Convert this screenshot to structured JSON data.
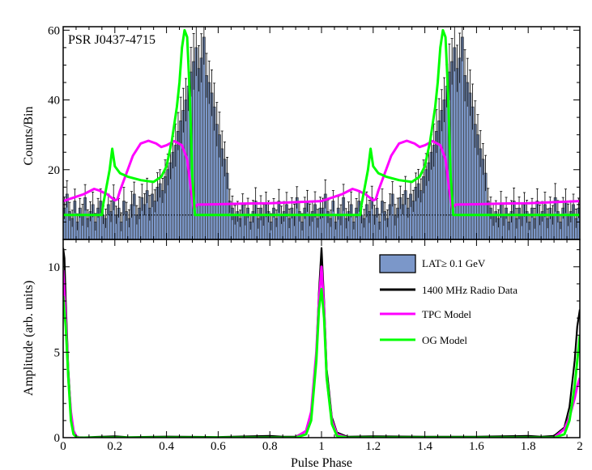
{
  "chart_data": [
    {
      "type": "bar",
      "panel": "top",
      "annotation": "PSR J0437-4715",
      "ylabel": "Counts/Bin",
      "xlim": [
        0,
        2
      ],
      "ylim": [
        0,
        61
      ],
      "x_ticks": [
        "0",
        "0.2",
        "0.4",
        "0.6",
        "0.8",
        "1",
        "1.2",
        "1.4",
        "1.6",
        "1.8",
        "2"
      ],
      "y_ticks": [
        "20",
        "40",
        "60"
      ],
      "background_level": 7.0,
      "histogram": {
        "name": "LAT≥ 0.1 GeV",
        "color": "#7b97c9",
        "bins_per_cycle": 100,
        "bin_width": 0.01,
        "values": [
          9,
          13,
          8,
          6,
          11,
          5,
          9,
          7,
          12,
          6,
          8,
          10,
          5,
          9,
          11,
          7,
          6,
          10,
          8,
          12,
          7,
          9,
          5,
          11,
          8,
          6,
          10,
          13,
          7,
          9,
          12,
          10,
          14,
          9,
          13,
          11,
          15,
          16,
          14,
          18,
          20,
          22,
          25,
          27,
          31,
          34,
          37,
          40,
          44,
          48,
          51,
          55,
          49,
          52,
          58,
          47,
          45,
          42,
          38,
          33,
          30,
          26,
          23,
          19,
          11,
          9,
          7,
          8,
          6,
          10,
          7,
          9,
          5,
          8,
          11,
          6,
          9,
          7,
          10,
          8,
          5,
          9,
          6,
          11,
          7,
          8,
          10,
          6,
          9,
          7,
          12,
          8,
          5,
          9,
          11,
          7,
          8,
          10,
          6,
          9
        ]
      },
      "series": [
        {
          "name": "TPC Model",
          "color": "#ff00ff",
          "x": [
            0,
            0.04,
            0.08,
            0.12,
            0.14,
            0.17,
            0.2,
            0.21,
            0.22,
            0.24,
            0.27,
            0.3,
            0.33,
            0.36,
            0.38,
            0.4,
            0.43,
            0.46,
            0.48,
            0.495,
            0.505,
            0.52,
            0.6,
            0.7,
            0.8,
            0.9,
            1.0,
            1.04,
            1.08,
            1.12,
            1.14,
            1.17,
            1.2,
            1.21,
            1.22,
            1.24,
            1.27,
            1.3,
            1.33,
            1.36,
            1.38,
            1.4,
            1.43,
            1.46,
            1.48,
            1.495,
            1.505,
            1.52,
            1.6,
            1.7,
            1.8,
            1.9,
            2.0
          ],
          "values": [
            11,
            12,
            13,
            14.5,
            14,
            13,
            11.2,
            11.5,
            14,
            18,
            24,
            27.5,
            28.3,
            27.5,
            26.5,
            27,
            28.2,
            27,
            23,
            14,
            9,
            10,
            10.1,
            10.3,
            10.4,
            10.7,
            11,
            12,
            13,
            14.5,
            14,
            13,
            11.2,
            11.5,
            14,
            18,
            24,
            27.5,
            28.3,
            27.5,
            26.5,
            27,
            28.2,
            27,
            23,
            14,
            9,
            10,
            10.1,
            10.3,
            10.4,
            10.7,
            11
          ]
        },
        {
          "name": "OG Model",
          "color": "#00ff00",
          "x": [
            0,
            0.15,
            0.155,
            0.18,
            0.19,
            0.2,
            0.22,
            0.25,
            0.3,
            0.35,
            0.38,
            0.4,
            0.42,
            0.44,
            0.45,
            0.46,
            0.47,
            0.48,
            0.49,
            0.5,
            0.51,
            1.0,
            1.15,
            1.155,
            1.18,
            1.19,
            1.2,
            1.22,
            1.25,
            1.3,
            1.35,
            1.38,
            1.4,
            1.42,
            1.44,
            1.45,
            1.46,
            1.47,
            1.48,
            1.49,
            1.5,
            1.51,
            2.0
          ],
          "values": [
            7,
            7,
            10,
            20,
            26,
            21,
            19,
            18,
            17,
            16.5,
            18,
            21,
            28,
            38,
            45,
            55,
            60,
            58,
            42,
            18,
            7,
            7,
            7,
            10,
            20,
            26,
            21,
            19,
            18,
            17,
            16.5,
            18,
            21,
            28,
            38,
            45,
            55,
            60,
            58,
            42,
            18,
            7,
            7
          ]
        }
      ]
    },
    {
      "type": "line",
      "panel": "bottom",
      "xlabel": "Pulse Phase",
      "ylabel": "Amplitude (arb. units)",
      "xlim": [
        0,
        2
      ],
      "ylim": [
        0,
        11.6
      ],
      "x_ticks": [
        "0",
        "0.2",
        "0.4",
        "0.6",
        "0.8",
        "1",
        "1.2",
        "1.4",
        "1.6",
        "1.8",
        "2"
      ],
      "y_ticks": [
        "0",
        "5",
        "10"
      ],
      "legend": {
        "placement": "top-right",
        "entries": [
          {
            "label": "LAT≥ 0.1 GeV",
            "kind": "box",
            "color": "#7b97c9"
          },
          {
            "label": "1400 MHz Radio Data",
            "kind": "line",
            "color": "#000000"
          },
          {
            "label": "TPC Model",
            "kind": "line",
            "color": "#ff00ff"
          },
          {
            "label": "OG Model",
            "kind": "line",
            "color": "#00ff00"
          }
        ]
      },
      "series": [
        {
          "name": "1400 MHz Radio Data",
          "color": "#000000",
          "x": [
            0,
            0.005,
            0.01,
            0.02,
            0.03,
            0.04,
            0.05,
            0.06,
            0.08,
            0.2,
            0.25,
            0.4,
            0.6,
            0.8,
            0.85,
            0.9,
            0.94,
            0.96,
            0.98,
            0.99,
            1.0,
            1.01,
            1.02,
            1.04,
            1.06,
            1.1,
            1.2,
            1.4,
            1.6,
            1.8,
            1.85,
            1.9,
            1.94,
            1.96,
            1.98,
            1.99,
            2.0
          ],
          "values": [
            11.1,
            10.5,
            8.0,
            4.0,
            1.5,
            0.4,
            0.05,
            0,
            0.02,
            0.08,
            0.03,
            0.06,
            0.04,
            0.1,
            0.05,
            0.05,
            0.4,
            1.5,
            5.0,
            8.5,
            11.1,
            8.0,
            4.0,
            1.2,
            0.3,
            0.05,
            0.08,
            0.05,
            0.05,
            0.1,
            0.05,
            0.1,
            0.6,
            1.8,
            4.5,
            6.5,
            7.5
          ]
        },
        {
          "name": "TPC Model",
          "color": "#ff00ff",
          "x": [
            0,
            0.01,
            0.02,
            0.03,
            0.04,
            0.05,
            0.06,
            0.1,
            0.9,
            0.94,
            0.96,
            0.98,
            0.99,
            1.0,
            1.01,
            1.02,
            1.04,
            1.06,
            1.1,
            1.9,
            1.94,
            1.96,
            1.98,
            1.99,
            2.0
          ],
          "values": [
            9.8,
            7.0,
            3.5,
            1.5,
            0.4,
            0.1,
            0.02,
            0,
            0,
            0.4,
            1.5,
            5.0,
            8.0,
            10.0,
            7.5,
            3.5,
            1.0,
            0.2,
            0,
            0,
            0.5,
            1.2,
            2.3,
            3.0,
            3.5
          ]
        },
        {
          "name": "OG Model",
          "color": "#00ff00",
          "x": [
            0,
            0.01,
            0.02,
            0.03,
            0.04,
            0.05,
            0.06,
            0.1,
            0.9,
            0.94,
            0.96,
            0.98,
            0.99,
            1.0,
            1.01,
            1.02,
            1.04,
            1.06,
            1.1,
            1.9,
            1.94,
            1.96,
            1.98,
            1.99,
            2.0
          ],
          "values": [
            8.3,
            6.5,
            3.5,
            1.0,
            0.2,
            0.05,
            0,
            0,
            0,
            0.2,
            1.0,
            4.5,
            7.5,
            8.7,
            7.0,
            3.5,
            0.8,
            0.1,
            0,
            0,
            0.2,
            1.0,
            3.0,
            4.5,
            6.0
          ]
        }
      ]
    }
  ]
}
